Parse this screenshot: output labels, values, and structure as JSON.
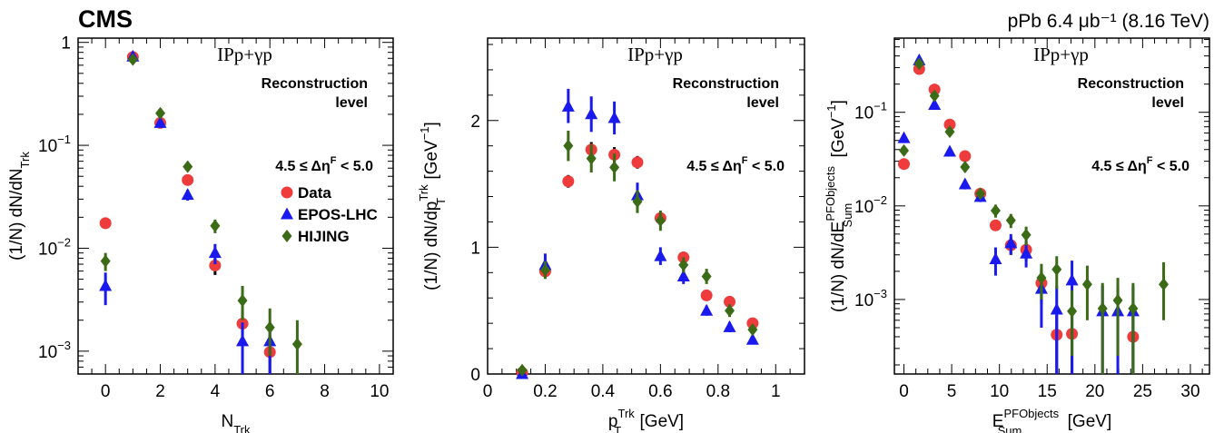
{
  "header": {
    "experiment": "CMS",
    "run_info": "pPb 6.4 μb⁻¹ (8.16 TeV)"
  },
  "legend_entries": [
    {
      "name": "Data",
      "color": "#ee3b3b",
      "marker": "circle"
    },
    {
      "name": "EPOS-LHC",
      "color": "#1a1aee",
      "marker": "triangle"
    },
    {
      "name": "HIJING",
      "color": "#3b6b16",
      "marker": "diamond"
    }
  ],
  "chart_data": [
    {
      "type": "scatter",
      "process": "IPp+γp",
      "level_text": [
        "Reconstruction",
        "level"
      ],
      "cut_text": "4.5 ≤ Δη",
      "cut_sup": "F",
      "cut_tail": " < 5.0",
      "xlabel": "N",
      "xlabel_sub": "Trk",
      "ylabel": "(1/N) dN/dN",
      "ylabel_sub": "Trk",
      "xlim": [
        -1,
        10.5
      ],
      "ylim": [
        0.0006,
        1.1
      ],
      "yscale": "log",
      "xticks": [
        0,
        2,
        4,
        6,
        8,
        10
      ],
      "yticks": [
        {
          "v": 0.001,
          "base": "10",
          "exp": "−3"
        },
        {
          "v": 0.01,
          "base": "10",
          "exp": "−2"
        },
        {
          "v": 0.1,
          "base": "10",
          "exp": "−1"
        },
        {
          "v": 1,
          "label": "1"
        }
      ],
      "series": [
        {
          "name": "Data",
          "x": [
            0,
            1,
            2,
            3,
            4,
            5,
            6
          ],
          "y": [
            0.0175,
            0.72,
            0.165,
            0.046,
            0.0068,
            0.00185,
            0.00098
          ],
          "lo": [
            0.016,
            0.7,
            0.16,
            0.043,
            0.0055,
            0.0012,
            0.0006
          ],
          "hi": [
            0.019,
            0.74,
            0.17,
            0.049,
            0.008,
            0.0025,
            0.0014
          ]
        },
        {
          "name": "EPOS-LHC",
          "x": [
            0,
            1,
            2,
            3,
            4,
            5,
            6
          ],
          "y": [
            0.0043,
            0.73,
            0.165,
            0.033,
            0.009,
            0.00125,
            0.00125
          ],
          "lo": [
            0.0028,
            0.7,
            0.16,
            0.029,
            0.007,
            0.0006,
            0.0006
          ],
          "hi": [
            0.0058,
            0.76,
            0.17,
            0.037,
            0.011,
            0.0019,
            0.0019
          ]
        },
        {
          "name": "HIJING",
          "x": [
            0,
            1,
            2,
            3,
            4,
            5,
            6,
            7
          ],
          "y": [
            0.0075,
            0.68,
            0.205,
            0.062,
            0.0165,
            0.0031,
            0.0017,
            0.00117
          ],
          "lo": [
            0.006,
            0.66,
            0.195,
            0.056,
            0.014,
            0.002,
            0.0009,
            0.0006
          ],
          "hi": [
            0.009,
            0.7,
            0.215,
            0.068,
            0.019,
            0.0043,
            0.0026,
            0.002
          ]
        }
      ]
    },
    {
      "type": "scatter",
      "process": "IPp+γp",
      "level_text": [
        "Reconstruction",
        "level"
      ],
      "cut_text": "4.5 ≤ Δη",
      "cut_sup": "F",
      "cut_tail": " < 5.0",
      "xlabel": "p",
      "xlabel_sup": "Trk",
      "xlabel_sub": "T",
      "xlabel_tail": " [GeV]",
      "ylabel": "(1/N) dN/dp",
      "ylabel_sup": "Trk",
      "ylabel_sub": "T",
      "ylabel_tail": " [GeV",
      "ylabel_tail_sup": "−1",
      "ylabel_end": "]",
      "xlim": [
        0,
        1.1
      ],
      "ylim": [
        0,
        2.65
      ],
      "yscale": "linear",
      "xticks": [
        0,
        0.2,
        0.4,
        0.6,
        0.8,
        1
      ],
      "yticks": [
        {
          "v": 0,
          "label": "0"
        },
        {
          "v": 1,
          "label": "1"
        },
        {
          "v": 2,
          "label": "2"
        }
      ],
      "series": [
        {
          "name": "Data",
          "x": [
            0.12,
            0.2,
            0.28,
            0.36,
            0.44,
            0.52,
            0.6,
            0.68,
            0.76,
            0.84,
            0.92
          ],
          "y": [
            0.01,
            0.81,
            1.52,
            1.77,
            1.73,
            1.67,
            1.23,
            0.92,
            0.62,
            0.57,
            0.4
          ],
          "lo": [
            0.0,
            0.78,
            1.47,
            1.71,
            1.67,
            1.62,
            1.19,
            0.88,
            0.59,
            0.54,
            0.38
          ],
          "hi": [
            0.02,
            0.84,
            1.57,
            1.83,
            1.79,
            1.72,
            1.27,
            0.96,
            0.65,
            0.6,
            0.42
          ]
        },
        {
          "name": "EPOS-LHC",
          "x": [
            0.12,
            0.2,
            0.28,
            0.36,
            0.44,
            0.52,
            0.6,
            0.68,
            0.76,
            0.84,
            0.92
          ],
          "y": [
            0.0,
            0.86,
            2.11,
            2.05,
            2.02,
            1.41,
            0.93,
            0.77,
            0.5,
            0.37,
            0.27
          ],
          "lo": [
            0.0,
            0.78,
            1.98,
            1.91,
            1.89,
            1.31,
            0.86,
            0.71,
            0.46,
            0.33,
            0.24
          ],
          "hi": [
            0.02,
            0.95,
            2.25,
            2.19,
            2.15,
            1.51,
            1.0,
            0.83,
            0.54,
            0.41,
            0.3
          ]
        },
        {
          "name": "HIJING",
          "x": [
            0.12,
            0.2,
            0.28,
            0.36,
            0.44,
            0.52,
            0.6,
            0.68,
            0.76,
            0.84,
            0.92
          ],
          "y": [
            0.03,
            0.82,
            1.8,
            1.7,
            1.63,
            1.36,
            1.21,
            0.86,
            0.77,
            0.5,
            0.35
          ],
          "lo": [
            0.0,
            0.75,
            1.68,
            1.59,
            1.52,
            1.27,
            1.13,
            0.8,
            0.71,
            0.45,
            0.31
          ],
          "hi": [
            0.06,
            0.89,
            1.92,
            1.81,
            1.74,
            1.45,
            1.29,
            0.92,
            0.83,
            0.55,
            0.39
          ]
        }
      ]
    },
    {
      "type": "scatter",
      "process": "IPp+γp",
      "level_text": [
        "Reconstruction",
        "level"
      ],
      "cut_text": "4.5 ≤ Δη",
      "cut_sup": "F",
      "cut_tail": " < 5.0",
      "xlabel": "E",
      "xlabel_sup": "PFObjects",
      "xlabel_sub": "Sum",
      "xlabel_tail": " [GeV]",
      "ylabel": "(1/N) dN/dE",
      "ylabel_sup": "PFObjects",
      "ylabel_sub": "Sum",
      "ylabel_tail": " [GeV",
      "ylabel_tail_sup": "−1",
      "ylabel_end": "]",
      "xlim": [
        -1,
        32
      ],
      "ylim": [
        0.00016,
        0.62
      ],
      "yscale": "log",
      "xticks": [
        0,
        5,
        10,
        15,
        20,
        25,
        30
      ],
      "yticks": [
        {
          "v": 0.001,
          "base": "10",
          "exp": "−3"
        },
        {
          "v": 0.01,
          "base": "10",
          "exp": "−2"
        },
        {
          "v": 0.1,
          "base": "10",
          "exp": "−1"
        }
      ],
      "series": [
        {
          "name": "Data",
          "x": [
            0,
            1.6,
            3.2,
            4.8,
            6.4,
            8,
            9.6,
            11.2,
            12.8,
            14.4,
            16,
            17.6,
            19.2,
            20.8,
            22.4,
            24
          ],
          "y": [
            0.028,
            0.29,
            0.175,
            0.074,
            0.034,
            0.0135,
            0.0062,
            0.0038,
            0.0034,
            0.0015,
            0.00042,
            0.00043,
            null,
            null,
            null,
            0.0004
          ],
          "lo": [
            0.025,
            0.27,
            0.165,
            0.07,
            0.032,
            0.0125,
            0.0054,
            0.003,
            0.0026,
            0.0009,
            0.00016,
            0.00016,
            null,
            null,
            null,
            0.00016
          ],
          "hi": [
            0.031,
            0.31,
            0.185,
            0.078,
            0.036,
            0.0145,
            0.007,
            0.0046,
            0.0042,
            0.0021,
            0.00068,
            0.0007,
            null,
            null,
            null,
            0.00066
          ]
        },
        {
          "name": "EPOS-LHC",
          "x": [
            0,
            1.6,
            3.2,
            4.8,
            6.4,
            8,
            9.6,
            11.2,
            12.8,
            14.4,
            16,
            17.6,
            19.2,
            20.8,
            22.4,
            24
          ],
          "y": [
            0.053,
            0.36,
            0.12,
            0.038,
            0.017,
            0.0125,
            0.0027,
            0.004,
            0.0031,
            0.0013,
            0.00078,
            0.0016,
            null,
            0.00075,
            0.00075,
            0.00075
          ],
          "lo": [
            0.047,
            0.33,
            0.11,
            0.034,
            0.015,
            0.011,
            0.0018,
            0.003,
            0.0022,
            0.0005,
            0.00016,
            0.00016,
            null,
            0.00016,
            0.00016,
            0.00016
          ],
          "hi": [
            0.059,
            0.39,
            0.13,
            0.042,
            0.019,
            0.014,
            0.0036,
            0.005,
            0.004,
            0.0021,
            0.0014,
            0.0026,
            null,
            0.0014,
            0.0014,
            0.0014
          ]
        },
        {
          "name": "HIJING",
          "x": [
            0,
            1.6,
            3.2,
            4.8,
            6.4,
            8,
            9.6,
            11.2,
            12.8,
            14.4,
            16,
            17.6,
            19.2,
            20.8,
            22.4,
            24,
            27.2
          ],
          "y": [
            0.039,
            0.33,
            0.15,
            0.062,
            0.026,
            0.0135,
            0.0089,
            0.007,
            0.0049,
            0.0017,
            0.0021,
            0.00075,
            0.00145,
            0.0008,
            0.00098,
            0.0008,
            0.00145
          ],
          "lo": [
            0.035,
            0.3,
            0.14,
            0.057,
            0.023,
            0.012,
            0.0075,
            0.0058,
            0.0038,
            0.001,
            0.0013,
            0.00025,
            0.0006,
            0.00016,
            0.00025,
            0.00016,
            0.0006
          ],
          "hi": [
            0.043,
            0.36,
            0.16,
            0.067,
            0.029,
            0.015,
            0.0103,
            0.0082,
            0.006,
            0.0024,
            0.0029,
            0.00125,
            0.0023,
            0.0015,
            0.0017,
            0.0015,
            0.0025
          ]
        }
      ]
    }
  ]
}
